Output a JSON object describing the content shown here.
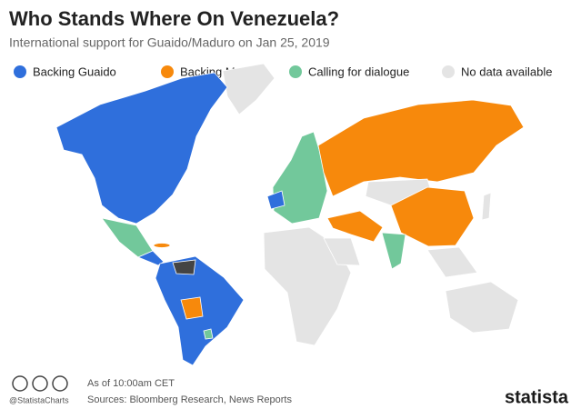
{
  "header": {
    "title": "Who Stands Where On Venezuela?",
    "subtitle": "International support for Guaido/Maduro on Jan 25, 2019"
  },
  "legend": [
    {
      "label": "Backing Guaido",
      "color": "#2f6fdc"
    },
    {
      "label": "Backing Maduro",
      "color": "#f7890c"
    },
    {
      "label": "Calling for dialogue",
      "color": "#72c89b"
    },
    {
      "label": "No data available",
      "color": "#e4e4e4"
    }
  ],
  "footer": {
    "handle": "@StatistaCharts",
    "note": "As of 10:00am CET",
    "sources": "Sources: Bloomberg Research, News Reports",
    "brand": "statista"
  }
}
